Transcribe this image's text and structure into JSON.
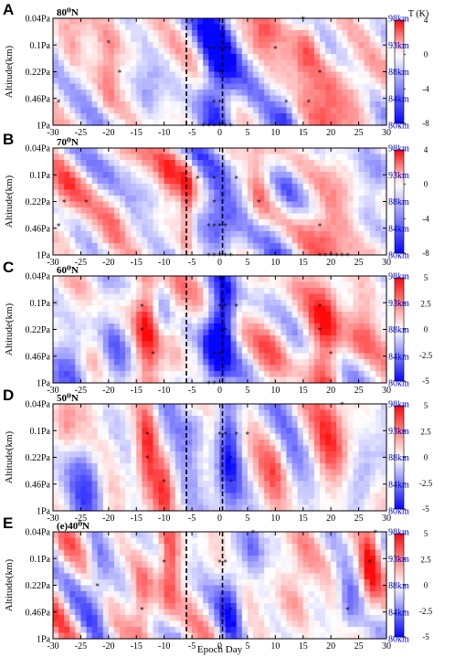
{
  "figure": {
    "x_axis_label": "Epoch Day",
    "y_axis_label": "Altitude(km)",
    "colorbar_label": "T (K)"
  },
  "chart_data": [
    {
      "type": "heatmap",
      "letter": "A",
      "title": "80⁰N",
      "x_ticks": [
        -30,
        -25,
        -20,
        -15,
        -10,
        -5,
        0,
        5,
        10,
        15,
        20,
        25,
        30
      ],
      "xlim": [
        -30,
        30
      ],
      "y_left_ticks": [
        "0.04Pa",
        "0.1Pa",
        "0.22Pa",
        "0.46Pa",
        "1Pa"
      ],
      "y_right_ticks": [
        "98km",
        "93km",
        "88km",
        "84km",
        "80km"
      ],
      "ylim_km": [
        80,
        98
      ],
      "colorbar_ticks": [
        "4",
        "0",
        "-4",
        "-8"
      ],
      "clim": [
        -8,
        4
      ],
      "dashed_lines_x": [
        -6,
        0.5
      ],
      "seed": 11,
      "features": [
        {
          "x": -0.5,
          "y": 89,
          "amp": -8,
          "sx": 2.2,
          "sy": 12
        },
        {
          "x": 16,
          "y": 95,
          "amp": 4.5,
          "sx": 1.6,
          "sy": 4
        },
        {
          "x": 20,
          "y": 86,
          "amp": 3.8,
          "sx": 3,
          "sy": 5
        },
        {
          "x": 25,
          "y": 84,
          "amp": 3,
          "sx": 2,
          "sy": 4
        },
        {
          "x": -20,
          "y": 90,
          "amp": 3.2,
          "sx": 1.3,
          "sy": 6
        },
        {
          "x": -27,
          "y": 93,
          "amp": 2.5,
          "sx": 1.5,
          "sy": 4
        },
        {
          "x": -13,
          "y": 86,
          "amp": -3,
          "sx": 2,
          "sy": 4
        },
        {
          "x": 12,
          "y": 82,
          "amp": -3,
          "sx": 1.5,
          "sy": 3
        },
        {
          "x": 8,
          "y": 96,
          "amp": 2.5,
          "sx": 1.5,
          "sy": 3
        }
      ],
      "significant_points": [
        [
          -20,
          94
        ],
        [
          -18,
          89
        ],
        [
          -2,
          93
        ],
        [
          -1,
          93
        ],
        [
          0,
          93
        ],
        [
          1,
          93
        ],
        [
          2,
          93
        ],
        [
          0,
          89
        ],
        [
          -1,
          84
        ],
        [
          0,
          84
        ],
        [
          -29,
          84
        ],
        [
          10,
          93
        ],
        [
          12,
          84
        ],
        [
          16,
          84
        ],
        [
          15,
          98
        ],
        [
          18,
          89
        ],
        [
          -3,
          80
        ],
        [
          -2,
          80
        ],
        [
          -1,
          80
        ],
        [
          0,
          80
        ],
        [
          1,
          80
        ],
        [
          2,
          80
        ]
      ]
    },
    {
      "type": "heatmap",
      "letter": "B",
      "title": "70⁰N",
      "x_ticks": [
        -30,
        -25,
        -20,
        -15,
        -10,
        -5,
        0,
        5,
        10,
        15,
        20,
        25,
        30
      ],
      "xlim": [
        -30,
        30
      ],
      "y_left_ticks": [
        "0.04Pa",
        "0.1Pa",
        "0.22Pa",
        "0.46Pa",
        "1Pa"
      ],
      "y_right_ticks": [
        "98km",
        "93km",
        "88km",
        "84km",
        "80km"
      ],
      "ylim_km": [
        80,
        98
      ],
      "colorbar_ticks": [
        "4",
        "0",
        "-4",
        "-8"
      ],
      "clim": [
        -8,
        4
      ],
      "dashed_lines_x": [
        -6,
        0.5
      ],
      "seed": 23,
      "features": [
        {
          "x": -0.5,
          "y": 85,
          "amp": -6,
          "sx": 2.5,
          "sy": 6
        },
        {
          "x": -6,
          "y": 89,
          "amp": 4.5,
          "sx": 0.8,
          "sy": 7
        },
        {
          "x": 20,
          "y": 85,
          "amp": 4.5,
          "sx": 3,
          "sy": 6
        },
        {
          "x": -9,
          "y": 93,
          "amp": 3,
          "sx": 1.4,
          "sy": 5
        },
        {
          "x": -28,
          "y": 90,
          "amp": 3,
          "sx": 2,
          "sy": 5
        },
        {
          "x": 7,
          "y": 92,
          "amp": 3,
          "sx": 1.2,
          "sy": 5
        },
        {
          "x": 12,
          "y": 89,
          "amp": -3,
          "sx": 2,
          "sy": 5
        },
        {
          "x": 27,
          "y": 92,
          "amp": -2.5,
          "sx": 2,
          "sy": 4
        },
        {
          "x": -19,
          "y": 86,
          "amp": 2,
          "sx": 1.5,
          "sy": 4
        }
      ],
      "significant_points": [
        [
          -28,
          89
        ],
        [
          -24,
          89
        ],
        [
          -29,
          85
        ],
        [
          -4,
          93
        ],
        [
          -1,
          93
        ],
        [
          -1,
          89
        ],
        [
          -2,
          85
        ],
        [
          -1,
          85
        ],
        [
          0,
          85
        ],
        [
          1,
          85
        ],
        [
          3,
          93
        ],
        [
          7,
          89
        ],
        [
          18,
          85
        ],
        [
          -6,
          89
        ],
        [
          -2,
          80
        ],
        [
          -1,
          80
        ],
        [
          0,
          80
        ],
        [
          1,
          80
        ],
        [
          2,
          80
        ],
        [
          18,
          80
        ],
        [
          19,
          80
        ],
        [
          20,
          80
        ],
        [
          21,
          80
        ],
        [
          22,
          80
        ],
        [
          23,
          80
        ]
      ]
    },
    {
      "type": "heatmap",
      "letter": "C",
      "title": "60⁰N",
      "x_ticks": [
        -30,
        -25,
        -20,
        -15,
        -10,
        -5,
        0,
        5,
        10,
        15,
        20,
        25,
        30
      ],
      "xlim": [
        -30,
        30
      ],
      "y_left_ticks": [
        "0.04Pa",
        "0.1Pa",
        "0.22Pa",
        "0.46Pa",
        "1Pa"
      ],
      "y_right_ticks": [
        "98km",
        "93km",
        "88km",
        "84km",
        "80km"
      ],
      "ylim_km": [
        80,
        98
      ],
      "colorbar_ticks": [
        "5",
        "2.5",
        "0",
        "-2.5",
        "-5"
      ],
      "clim": [
        -5,
        5
      ],
      "dashed_lines_x": [
        -6,
        0.5
      ],
      "seed": 37,
      "features": [
        {
          "x": -1,
          "y": 85,
          "amp": -5,
          "sx": 1.8,
          "sy": 6
        },
        {
          "x": 1,
          "y": 92,
          "amp": -3.5,
          "sx": 1.5,
          "sy": 5
        },
        {
          "x": -13,
          "y": 91,
          "amp": 4,
          "sx": 1.4,
          "sy": 7
        },
        {
          "x": 19,
          "y": 89,
          "amp": 4,
          "sx": 2,
          "sy": 7
        },
        {
          "x": -26,
          "y": 86,
          "amp": -2.5,
          "sx": 2,
          "sy": 4
        },
        {
          "x": -19,
          "y": 84,
          "amp": -2.5,
          "sx": 2,
          "sy": 4
        },
        {
          "x": -8,
          "y": 89,
          "amp": 2.2,
          "sx": 1.2,
          "sy": 5
        },
        {
          "x": 25,
          "y": 88,
          "amp": 2,
          "sx": 2,
          "sy": 4
        },
        {
          "x": 10,
          "y": 87,
          "amp": 1.8,
          "sx": 2,
          "sy": 4
        }
      ],
      "significant_points": [
        [
          -14,
          93
        ],
        [
          -14,
          89
        ],
        [
          -12,
          85
        ],
        [
          0,
          93
        ],
        [
          1,
          93
        ],
        [
          3,
          93
        ],
        [
          1,
          89
        ],
        [
          0,
          85
        ],
        [
          -1,
          85
        ],
        [
          18,
          93
        ],
        [
          18,
          89
        ],
        [
          20,
          85
        ],
        [
          -2,
          80
        ],
        [
          -1,
          80
        ]
      ]
    },
    {
      "type": "heatmap",
      "letter": "D",
      "title": "50⁰N",
      "x_ticks": [
        -30,
        -25,
        -20,
        -15,
        -10,
        -5,
        0,
        5,
        10,
        15,
        20,
        25,
        30
      ],
      "xlim": [
        -30,
        30
      ],
      "y_left_ticks": [
        "0.04Pa",
        "0.1Pa",
        "0.22Pa",
        "0.46Pa",
        "1Pa"
      ],
      "y_right_ticks": [
        "98km",
        "93km",
        "88km",
        "84km",
        "80km"
      ],
      "ylim_km": [
        80,
        98
      ],
      "colorbar_ticks": [
        "5",
        "2.5",
        "0",
        "-2.5",
        "-5"
      ],
      "clim": [
        -5,
        5
      ],
      "dashed_lines_x": [
        -6,
        0.5
      ],
      "seed": 53,
      "features": [
        {
          "x": 1.5,
          "y": 89,
          "amp": -4.5,
          "sx": 1.8,
          "sy": 8
        },
        {
          "x": -13,
          "y": 91,
          "amp": 3.5,
          "sx": 1.2,
          "sy": 6
        },
        {
          "x": -10,
          "y": 84,
          "amp": 3,
          "sx": 1.2,
          "sy": 4
        },
        {
          "x": -23,
          "y": 86,
          "amp": -3,
          "sx": 2,
          "sy": 5
        },
        {
          "x": -28,
          "y": 94,
          "amp": 2.5,
          "sx": 1.5,
          "sy": 4
        },
        {
          "x": 20,
          "y": 92,
          "amp": 3,
          "sx": 2,
          "sy": 6
        },
        {
          "x": 26,
          "y": 86,
          "amp": -2.5,
          "sx": 2,
          "sy": 4
        },
        {
          "x": 10,
          "y": 88,
          "amp": 2,
          "sx": 1.5,
          "sy": 4
        },
        {
          "x": -4,
          "y": 95,
          "amp": -2.5,
          "sx": 1.5,
          "sy": 3
        }
      ],
      "significant_points": [
        [
          -13,
          93
        ],
        [
          -13,
          89
        ],
        [
          -10,
          85
        ],
        [
          0,
          93
        ],
        [
          1,
          93
        ],
        [
          3,
          93
        ],
        [
          5,
          93
        ],
        [
          2,
          89
        ],
        [
          2,
          85
        ],
        [
          22,
          98
        ]
      ]
    },
    {
      "type": "heatmap",
      "letter": "E",
      "title": "(e)40⁰N",
      "x_ticks": [
        -30,
        -25,
        -20,
        -15,
        -10,
        -5,
        0,
        5,
        10,
        15,
        20,
        25,
        30
      ],
      "xlim": [
        -30,
        30
      ],
      "y_left_ticks": [
        "0.04Pa",
        "0.1Pa",
        "0.22Pa",
        "0.46Pa",
        "1Pa"
      ],
      "y_right_ticks": [
        "98km",
        "93km",
        "88km",
        "84km",
        "80km"
      ],
      "ylim_km": [
        80,
        98
      ],
      "colorbar_ticks": [
        "5",
        "2.5",
        "0",
        "-2.5",
        "-5"
      ],
      "clim": [
        -5,
        5
      ],
      "dashed_lines_x": [
        -6,
        0.5
      ],
      "seed": 71,
      "features": [
        {
          "x": -9,
          "y": 92,
          "amp": 3.5,
          "sx": 1.2,
          "sy": 6
        },
        {
          "x": -14,
          "y": 86,
          "amp": 3,
          "sx": 1.5,
          "sy": 5
        },
        {
          "x": -22,
          "y": 89,
          "amp": -3,
          "sx": 1.5,
          "sy": 5
        },
        {
          "x": 2,
          "y": 86,
          "amp": -3.5,
          "sx": 1.5,
          "sy": 5
        },
        {
          "x": 27,
          "y": 92,
          "amp": 4,
          "sx": 1.2,
          "sy": 6
        },
        {
          "x": 23,
          "y": 85,
          "amp": -2.5,
          "sx": 1.5,
          "sy": 4
        },
        {
          "x": 14,
          "y": 90,
          "amp": 2,
          "sx": 2,
          "sy": 5
        },
        {
          "x": -28,
          "y": 94,
          "amp": 2,
          "sx": 1.5,
          "sy": 4
        },
        {
          "x": 6,
          "y": 95,
          "amp": -2,
          "sx": 1.5,
          "sy": 3
        }
      ],
      "significant_points": [
        [
          -10,
          93
        ],
        [
          -22,
          89
        ],
        [
          -14,
          85
        ],
        [
          0,
          93
        ],
        [
          1,
          93
        ],
        [
          2,
          85
        ],
        [
          6,
          98
        ],
        [
          23,
          85
        ],
        [
          27,
          93
        ],
        [
          28,
          98
        ]
      ]
    }
  ]
}
